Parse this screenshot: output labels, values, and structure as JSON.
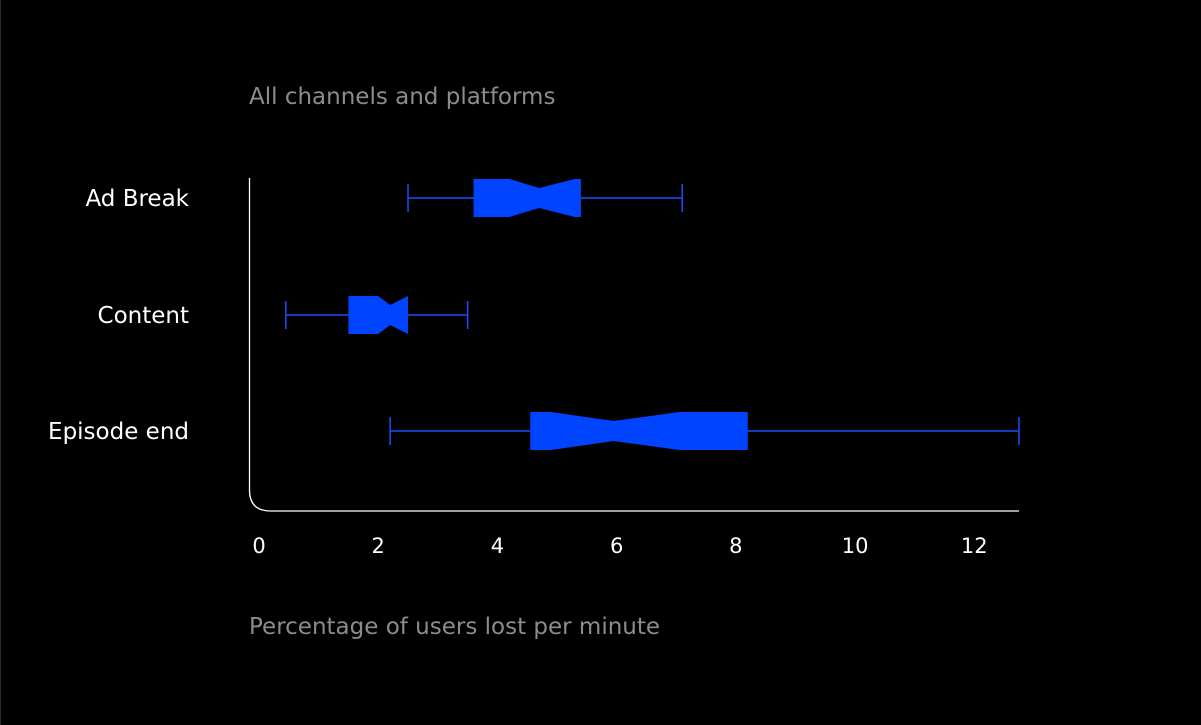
{
  "chart_data": {
    "type": "boxplot",
    "title": "",
    "subtitle": "All channels and platforms",
    "xlabel": "Percentage of users lost per minute",
    "ylabel": "",
    "xlim": [
      0,
      12.75
    ],
    "xticks": [
      0,
      2,
      4,
      6,
      8,
      10,
      12
    ],
    "grid": false,
    "orientation": "horizontal",
    "notched": true,
    "categories": [
      "Ad Break",
      "Content",
      "Episode end"
    ],
    "boxes": [
      {
        "category": "Ad Break",
        "whisker_low": 2.5,
        "q1": 3.6,
        "notch_low": 4.2,
        "median": 4.7,
        "notch_high": 5.3,
        "q3": 5.4,
        "whisker_high": 7.1
      },
      {
        "category": "Content",
        "whisker_low": 0.45,
        "q1": 1.5,
        "notch_low": 2.0,
        "median": 2.2,
        "notch_high": 2.5,
        "q3": 2.5,
        "whisker_high": 3.5
      },
      {
        "category": "Episode end",
        "whisker_low": 2.2,
        "q1": 4.55,
        "notch_low": 4.9,
        "median": 5.95,
        "notch_high": 7.05,
        "q3": 8.2,
        "whisker_high": 12.75
      }
    ],
    "colors": {
      "box": "#0044ff",
      "whisker": "#1a4dff",
      "axis": "#ffffff",
      "background": "#000000"
    }
  }
}
